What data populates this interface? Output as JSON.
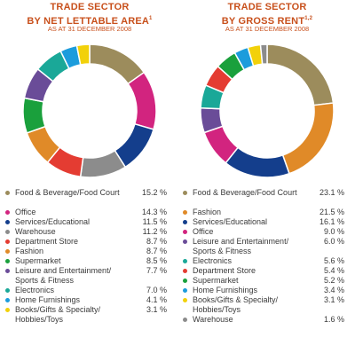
{
  "charts": [
    {
      "title_line1": "TRADE SECTOR",
      "title_line2": "BY NET LETTABLE AREA",
      "title_sup": "1",
      "subtitle": "AS AT 31 DECEMBER 2008"
    },
    {
      "title_line1": "TRADE SECTOR",
      "title_line2": "BY GROSS RENT",
      "title_sup": "1,2",
      "subtitle": "AS AT 31 DECEMBER 2008"
    }
  ],
  "colors": {
    "title": "#c8501c",
    "food_beverage": "#9c8c5c",
    "office": "#d2247f",
    "services_educational": "#143e8c",
    "warehouse": "#8c8c8c",
    "department_store": "#e43c32",
    "fashion": "#e08a28",
    "supermarket": "#1aa03c",
    "leisure_entertainment": "#6a4c98",
    "electronics": "#1aa898",
    "home_furnishings": "#1c9cdc",
    "books_gifts": "#f2d10a"
  },
  "chart_data": [
    {
      "type": "pie",
      "title": "TRADE SECTOR BY NET LETTABLE AREA",
      "subtitle": "AS AT 31 DECEMBER 2008",
      "slices": [
        {
          "label": "Food & Beverage/Food Court",
          "value": 15.2,
          "display": "15.2 %",
          "color_key": "food_beverage"
        },
        {
          "label": "Office",
          "value": 14.3,
          "display": "14.3 %",
          "color_key": "office"
        },
        {
          "label": "Services/Educational",
          "value": 11.5,
          "display": "11.5 %",
          "color_key": "services_educational"
        },
        {
          "label": "Warehouse",
          "value": 11.2,
          "display": "11.2 %",
          "color_key": "warehouse"
        },
        {
          "label": "Department Store",
          "value": 8.7,
          "display": "8.7 %",
          "color_key": "department_store"
        },
        {
          "label": "Fashion",
          "value": 8.7,
          "display": "8.7 %",
          "color_key": "fashion"
        },
        {
          "label": "Supermarket",
          "value": 8.5,
          "display": "8.5 %",
          "color_key": "supermarket"
        },
        {
          "label": "Leisure and Entertainment/ Sports & Fitness",
          "value": 7.7,
          "display": "7.7 %",
          "color_key": "leisure_entertainment"
        },
        {
          "label": "Electronics",
          "value": 7.0,
          "display": "7.0 %",
          "color_key": "electronics"
        },
        {
          "label": "Home Furnishings",
          "value": 4.1,
          "display": "4.1 %",
          "color_key": "home_furnishings"
        },
        {
          "label": "Books/Gifts & Specialty/ Hobbies/Toys",
          "value": 3.1,
          "display": "3.1 %",
          "color_key": "books_gifts"
        }
      ]
    },
    {
      "type": "pie",
      "title": "TRADE SECTOR BY GROSS RENT",
      "subtitle": "AS AT 31 DECEMBER 2008",
      "slices": [
        {
          "label": "Food & Beverage/Food Court",
          "value": 23.1,
          "display": "23.1 %",
          "color_key": "food_beverage"
        },
        {
          "label": "Fashion",
          "value": 21.5,
          "display": "21.5 %",
          "color_key": "fashion"
        },
        {
          "label": "Services/Educational",
          "value": 16.1,
          "display": "16.1 %",
          "color_key": "services_educational"
        },
        {
          "label": "Office",
          "value": 9.0,
          "display": "9.0 %",
          "color_key": "office"
        },
        {
          "label": "Leisure and Entertainment/ Sports & Fitness",
          "value": 6.0,
          "display": "6.0 %",
          "color_key": "leisure_entertainment"
        },
        {
          "label": "Electronics",
          "value": 5.6,
          "display": "5.6 %",
          "color_key": "electronics"
        },
        {
          "label": "Department Store",
          "value": 5.4,
          "display": "5.4 %",
          "color_key": "department_store"
        },
        {
          "label": "Supermarket",
          "value": 5.2,
          "display": "5.2 %",
          "color_key": "supermarket"
        },
        {
          "label": "Home Furnishings",
          "value": 3.4,
          "display": "3.4 %",
          "color_key": "home_furnishings"
        },
        {
          "label": "Books/Gifts & Specialty/ Hobbies/Toys",
          "value": 3.1,
          "display": "3.1 %",
          "color_key": "books_gifts"
        },
        {
          "label": "Warehouse",
          "value": 1.6,
          "display": "1.6 %",
          "color_key": "warehouse"
        }
      ]
    }
  ]
}
